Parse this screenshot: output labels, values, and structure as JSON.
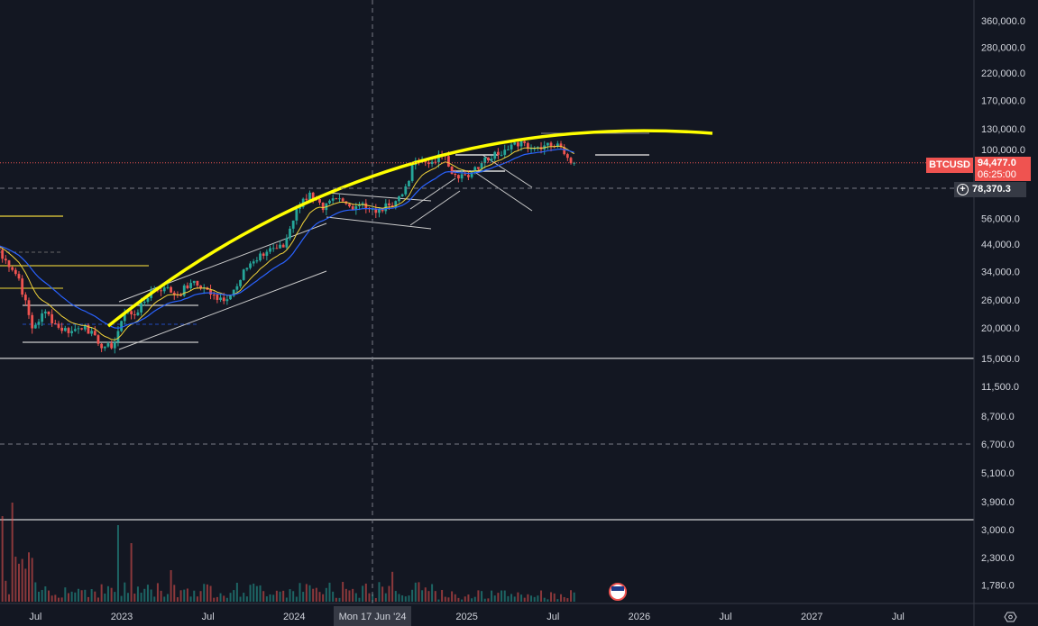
{
  "symbol": "BTCUSD",
  "current_price": "94,477.0",
  "countdown": "06:25:00",
  "crosshair_price": "78,370.3",
  "crosshair_date": "Mon 17 Jun '24",
  "colors": {
    "up": "#26a69a",
    "down": "#ef5350",
    "ema_fast": "#f2d33a",
    "ema_slow": "#2962ff",
    "arc": "#ffff00",
    "bg": "#131722"
  },
  "chart_data": {
    "type": "candlestick",
    "scale": "log",
    "interval": "weekly",
    "monthly_closes": {
      "start": "2022-04",
      "values": [
        37700,
        31800,
        19900,
        23300,
        20000,
        19400,
        20500,
        17200,
        16500,
        23100,
        23100,
        28500,
        29200,
        27200,
        30500,
        29200,
        26000,
        27000,
        34600,
        37700,
        42300,
        42600,
        61200,
        71300,
        60600,
        67500,
        62700,
        64600,
        59000,
        63300,
        70200,
        96400,
        93400,
        102400,
        84300,
        82500,
        94200,
        104600,
        107100,
        115700,
        108200,
        114000,
        109500,
        94477
      ],
      "first_open": 45500
    },
    "price_ticks": [
      360000,
      280000,
      220000,
      170000,
      130000,
      100000,
      56000,
      44000,
      34000,
      26000,
      20000,
      15000,
      11500,
      8700,
      6700,
      5100,
      3900,
      3000,
      2300,
      1780
    ],
    "price_tick_labels": [
      "360,000.0",
      "280,000.0",
      "220,000.0",
      "170,000.0",
      "130,000.0",
      "100,000.0",
      "56,000.0",
      "44,000.0",
      "34,000.0",
      "26,000.0",
      "20,000.0",
      "15,000.0",
      "11,500.0",
      "8,700.0",
      "6,700.0",
      "5,100.0",
      "3,900.0",
      "3,000.0",
      "2,300.0",
      "1,780.0"
    ],
    "time_ticks": [
      {
        "label": "Jul",
        "t": 2022.5
      },
      {
        "label": "2023",
        "t": 2023.0
      },
      {
        "label": "Jul",
        "t": 2023.5
      },
      {
        "label": "2024",
        "t": 2024.0
      },
      {
        "label": "2025",
        "t": 2025.0
      },
      {
        "label": "Jul",
        "t": 2025.5
      },
      {
        "label": "2026",
        "t": 2026.0
      },
      {
        "label": "Jul",
        "t": 2026.5
      },
      {
        "label": "2027",
        "t": 2027.0
      },
      {
        "label": "Jul",
        "t": 2027.5
      }
    ],
    "horizontal_levels": [
      15000,
      3350,
      6700
    ]
  }
}
